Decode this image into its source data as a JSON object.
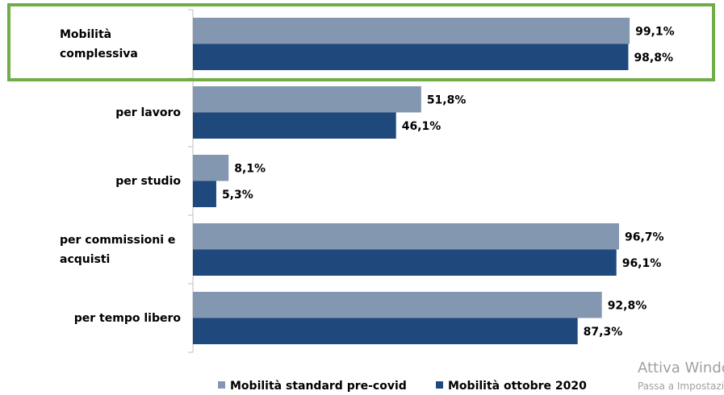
{
  "chart_data": {
    "type": "bar",
    "orientation": "horizontal",
    "categories": [
      "Mobilità complessiva",
      "per lavoro",
      "per studio",
      "per commissioni e acquisti",
      "per tempo libero"
    ],
    "series": [
      {
        "name": "Mobilità standard pre-covid",
        "color": "#8497b0",
        "values": [
          99.1,
          51.8,
          8.1,
          96.7,
          92.8
        ],
        "value_labels": [
          "99,1%",
          "51,8%",
          "8,1%",
          "96,7%",
          "92,8%"
        ]
      },
      {
        "name": "Mobilità ottobre 2020",
        "color": "#1f497d",
        "values": [
          98.8,
          46.1,
          5.3,
          96.1,
          87.3
        ],
        "value_labels": [
          "98,8%",
          "46,1%",
          "5,3%",
          "96,1%",
          "87,3%"
        ]
      }
    ],
    "xlim": [
      0,
      100
    ],
    "legend": "bottom"
  },
  "watermark": {
    "title": "Attiva Windows",
    "subtitle": "Passa a Impostazioni per attivare Windows."
  }
}
